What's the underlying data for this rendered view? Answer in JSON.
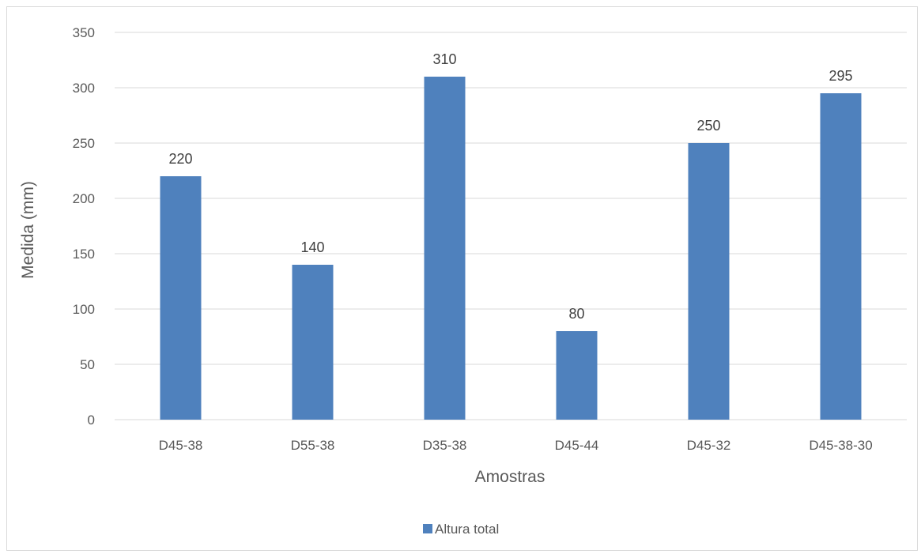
{
  "chart_data": {
    "type": "bar",
    "title": "",
    "xlabel": "Amostras",
    "ylabel": "Medida (mm)",
    "ylim": [
      0,
      350
    ],
    "yticks": [
      0,
      50,
      100,
      150,
      200,
      250,
      300,
      350
    ],
    "categories": [
      "D45-38",
      "D55-38",
      "D35-38",
      "D45-44",
      "D45-32",
      "D45-38-30"
    ],
    "series": [
      {
        "name": "Altura total",
        "values": [
          220,
          140,
          310,
          80,
          250,
          295
        ],
        "color": "#4f81bd"
      }
    ],
    "grid": true,
    "legend": "bottom",
    "data_labels": true
  }
}
